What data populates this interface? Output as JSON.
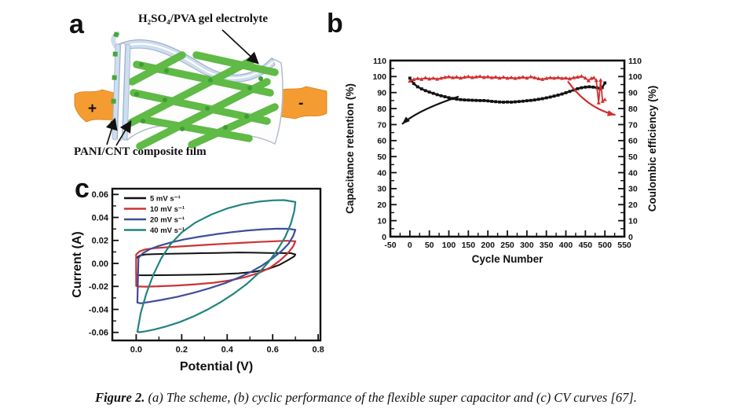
{
  "panel_letters": {
    "a": "a",
    "b": "b",
    "c": "c"
  },
  "caption": {
    "prefix": "Figure 2.",
    "text": " (a) The scheme, (b) cyclic performance of the flexible super capacitor and (c) CV curves [67]."
  },
  "panel_a": {
    "electrolyte_label": "H₂SO₄/PVA gel electrolyte",
    "film_label": "PANI/CNT composite film",
    "plus": "+",
    "minus": "-",
    "colors": {
      "electrode_orange": "#F49B32",
      "mesh_green": "#5FBA46",
      "knot_green": "#3E9E33",
      "electrolyte_blue": "#CFDEEE",
      "layer_stroke": "#9AB0CC",
      "sheet_outline": "#B4BCC8"
    }
  },
  "chart_data": [
    {
      "id": "cycling_performance",
      "type": "line",
      "xlabel": "Cycle Number",
      "ylabel_left": "Capacitance retention (%)",
      "ylabel_right": "Coulombic efficiency (%)",
      "xlim": [
        -50,
        550
      ],
      "ylim": [
        0,
        110
      ],
      "x_ticks": [
        -50,
        0,
        50,
        100,
        150,
        200,
        250,
        300,
        350,
        400,
        450,
        500,
        550
      ],
      "y_ticks": [
        0,
        10,
        20,
        30,
        40,
        50,
        60,
        70,
        80,
        90,
        100,
        110
      ],
      "x_minor_step": 25,
      "y_minor_step": 5,
      "grid": false,
      "series": [
        {
          "name": "Capacitance retention",
          "color": "#111111",
          "marker": "square",
          "x": [
            0,
            10,
            20,
            30,
            40,
            50,
            60,
            70,
            80,
            90,
            100,
            110,
            120,
            130,
            140,
            150,
            160,
            170,
            180,
            190,
            200,
            210,
            220,
            230,
            240,
            250,
            260,
            270,
            280,
            290,
            300,
            310,
            320,
            330,
            340,
            350,
            360,
            370,
            380,
            390,
            400,
            410,
            420,
            430,
            440,
            450,
            460,
            470,
            480,
            488,
            493,
            500
          ],
          "y": [
            99.0,
            95.6,
            93.6,
            92.3,
            91.2,
            90.3,
            89.5,
            88.7,
            88.0,
            87.4,
            86.8,
            86.3,
            85.9,
            85.6,
            85.4,
            85.3,
            85.2,
            85.1,
            85.0,
            85.0,
            84.8,
            84.5,
            84.3,
            84.1,
            84.0,
            84.1,
            84.0,
            84.2,
            84.4,
            84.6,
            84.9,
            85.1,
            85.4,
            85.8,
            86.2,
            86.7,
            87.2,
            87.8,
            88.4,
            89.1,
            89.9,
            90.7,
            91.6,
            92.4,
            93.0,
            93.4,
            93.6,
            93.4,
            93.0,
            92.3,
            93.1,
            96.0
          ]
        },
        {
          "name": "Coulombic efficiency",
          "color": "#D22F2F",
          "marker": "triangle",
          "x": [
            0,
            10,
            20,
            30,
            40,
            50,
            60,
            70,
            80,
            90,
            100,
            110,
            120,
            130,
            140,
            150,
            160,
            170,
            180,
            190,
            200,
            210,
            220,
            230,
            240,
            250,
            260,
            270,
            280,
            290,
            300,
            310,
            320,
            330,
            340,
            350,
            360,
            370,
            380,
            390,
            400,
            410,
            420,
            430,
            440,
            450,
            458,
            465,
            472,
            478,
            484,
            489,
            494,
            500
          ],
          "y": [
            97.2,
            98.2,
            98.8,
            98.3,
            99.2,
            98.5,
            99.0,
            98.4,
            99.0,
            99.5,
            99.9,
            99.3,
            99.7,
            99.1,
            99.6,
            100.0,
            99.4,
            99.8,
            100.1,
            99.5,
            99.9,
            99.3,
            99.7,
            99.1,
            99.6,
            99.0,
            99.4,
            98.9,
            99.3,
            99.7,
            99.1,
            99.9,
            99.3,
            98.7,
            98.3,
            98.9,
            99.3,
            99.0,
            99.4,
            98.9,
            99.1,
            98.6,
            99.3,
            99.7,
            100.2,
            99.1,
            97.4,
            98.9,
            99.3,
            97.6,
            83.6,
            97.8,
            84.6,
            85.6
          ]
        }
      ],
      "annotations": [
        {
          "type": "arrow",
          "color": "#111111",
          "from": [
            125,
            87.5
          ],
          "ctrl": [
            20,
            79
          ],
          "to": [
            -20,
            70.3
          ]
        },
        {
          "type": "arrow",
          "color": "#D22F2F",
          "from": [
            405,
            97.0
          ],
          "ctrl": [
            455,
            80
          ],
          "to": [
            527,
            76.0
          ]
        }
      ]
    },
    {
      "id": "cv_curves",
      "type": "line",
      "xlabel": "Potential (V)",
      "ylabel": "Current (A)",
      "xlim": [
        -0.105,
        0.81
      ],
      "ylim": [
        -0.067,
        0.065
      ],
      "x_ticks": [
        0.0,
        0.2,
        0.4,
        0.6,
        0.8
      ],
      "x_tick_labels": [
        "0.0",
        "0.2",
        "0.4",
        "0.6",
        "0.8"
      ],
      "y_ticks": [
        -0.06,
        -0.04,
        -0.02,
        0.0,
        0.02,
        0.04,
        0.06
      ],
      "y_tick_labels": [
        "-0.06",
        "-0.04",
        "-0.02",
        "0.00",
        "0.02",
        "0.04",
        "0.06"
      ],
      "x_minor": [
        0.1,
        0.3,
        0.5,
        0.7
      ],
      "y_minor_step": 0.01,
      "grid": false,
      "legend_position": "top-left",
      "series": [
        {
          "name": "5 mV s⁻¹",
          "color": "#111111",
          "closed": true,
          "points": [
            [
              0.0,
              0.0045
            ],
            [
              0.015,
              0.0068
            ],
            [
              0.04,
              0.0078
            ],
            [
              0.08,
              0.0081
            ],
            [
              0.15,
              0.0084
            ],
            [
              0.25,
              0.0088
            ],
            [
              0.35,
              0.0091
            ],
            [
              0.45,
              0.0095
            ],
            [
              0.52,
              0.0093
            ],
            [
              0.58,
              0.0091
            ],
            [
              0.64,
              0.009
            ],
            [
              0.68,
              0.0089
            ],
            [
              0.7,
              0.0078
            ],
            [
              0.695,
              0.0062
            ],
            [
              0.67,
              0.0032
            ],
            [
              0.63,
              -0.0012
            ],
            [
              0.58,
              -0.0048
            ],
            [
              0.52,
              -0.0072
            ],
            [
              0.45,
              -0.0086
            ],
            [
              0.36,
              -0.0094
            ],
            [
              0.27,
              -0.0098
            ],
            [
              0.18,
              -0.01
            ],
            [
              0.1,
              -0.0102
            ],
            [
              0.04,
              -0.0103
            ],
            [
              0.01,
              -0.0102
            ],
            [
              0.0,
              -0.0095
            ]
          ]
        },
        {
          "name": "10 mV s⁻¹",
          "color": "#CC3333",
          "closed": true,
          "points": [
            [
              0.0,
              0.0078
            ],
            [
              0.015,
              0.0105
            ],
            [
              0.04,
              0.0122
            ],
            [
              0.08,
              0.0132
            ],
            [
              0.14,
              0.0141
            ],
            [
              0.22,
              0.0151
            ],
            [
              0.3,
              0.0161
            ],
            [
              0.38,
              0.017
            ],
            [
              0.46,
              0.0179
            ],
            [
              0.54,
              0.0187
            ],
            [
              0.61,
              0.0193
            ],
            [
              0.66,
              0.0197
            ],
            [
              0.7,
              0.0193
            ],
            [
              0.69,
              0.0148
            ],
            [
              0.665,
              0.0085
            ],
            [
              0.63,
              0.0022
            ],
            [
              0.59,
              -0.0035
            ],
            [
              0.54,
              -0.0082
            ],
            [
              0.48,
              -0.0119
            ],
            [
              0.41,
              -0.0148
            ],
            [
              0.34,
              -0.0168
            ],
            [
              0.26,
              -0.0182
            ],
            [
              0.18,
              -0.0192
            ],
            [
              0.1,
              -0.0199
            ],
            [
              0.04,
              -0.0202
            ],
            [
              0.01,
              -0.0201
            ],
            [
              0.0,
              -0.0196
            ]
          ]
        },
        {
          "name": "20 mV s⁻¹",
          "color": "#3D4D99",
          "closed": true,
          "points": [
            [
              0.01,
              0.0048
            ],
            [
              0.03,
              0.009
            ],
            [
              0.06,
              0.0124
            ],
            [
              0.1,
              0.0153
            ],
            [
              0.15,
              0.0181
            ],
            [
              0.21,
              0.0208
            ],
            [
              0.28,
              0.0233
            ],
            [
              0.35,
              0.0254
            ],
            [
              0.42,
              0.0272
            ],
            [
              0.49,
              0.0287
            ],
            [
              0.56,
              0.0297
            ],
            [
              0.62,
              0.0302
            ],
            [
              0.67,
              0.0301
            ],
            [
              0.7,
              0.0292
            ],
            [
              0.69,
              0.0238
            ],
            [
              0.67,
              0.0172
            ],
            [
              0.64,
              0.011
            ],
            [
              0.6,
              0.0046
            ],
            [
              0.555,
              -0.0016
            ],
            [
              0.505,
              -0.0073
            ],
            [
              0.45,
              -0.0124
            ],
            [
              0.39,
              -0.0172
            ],
            [
              0.32,
              -0.0217
            ],
            [
              0.25,
              -0.0257
            ],
            [
              0.18,
              -0.0291
            ],
            [
              0.11,
              -0.0318
            ],
            [
              0.055,
              -0.0336
            ],
            [
              0.02,
              -0.0347
            ],
            [
              0.005,
              -0.034
            ]
          ]
        },
        {
          "name": "40 mV s⁻¹",
          "color": "#22847E",
          "closed": true,
          "points": [
            [
              0.005,
              -0.0595
            ],
            [
              0.02,
              -0.043
            ],
            [
              0.045,
              -0.026
            ],
            [
              0.075,
              -0.01
            ],
            [
              0.11,
              0.0045
            ],
            [
              0.15,
              0.0165
            ],
            [
              0.2,
              0.027
            ],
            [
              0.26,
              0.0355
            ],
            [
              0.33,
              0.0425
            ],
            [
              0.4,
              0.0478
            ],
            [
              0.47,
              0.0515
            ],
            [
              0.54,
              0.0538
            ],
            [
              0.6,
              0.0549
            ],
            [
              0.65,
              0.0551
            ],
            [
              0.7,
              0.0535
            ],
            [
              0.695,
              0.0455
            ],
            [
              0.68,
              0.0345
            ],
            [
              0.655,
              0.023
            ],
            [
              0.62,
              0.0115
            ],
            [
              0.58,
              0.0008
            ],
            [
              0.535,
              -0.009
            ],
            [
              0.485,
              -0.018
            ],
            [
              0.43,
              -0.0262
            ],
            [
              0.37,
              -0.0338
            ],
            [
              0.31,
              -0.0405
            ],
            [
              0.25,
              -0.0463
            ],
            [
              0.19,
              -0.0511
            ],
            [
              0.13,
              -0.0549
            ],
            [
              0.08,
              -0.0575
            ],
            [
              0.04,
              -0.0591
            ],
            [
              0.015,
              -0.0598
            ]
          ]
        }
      ]
    }
  ]
}
